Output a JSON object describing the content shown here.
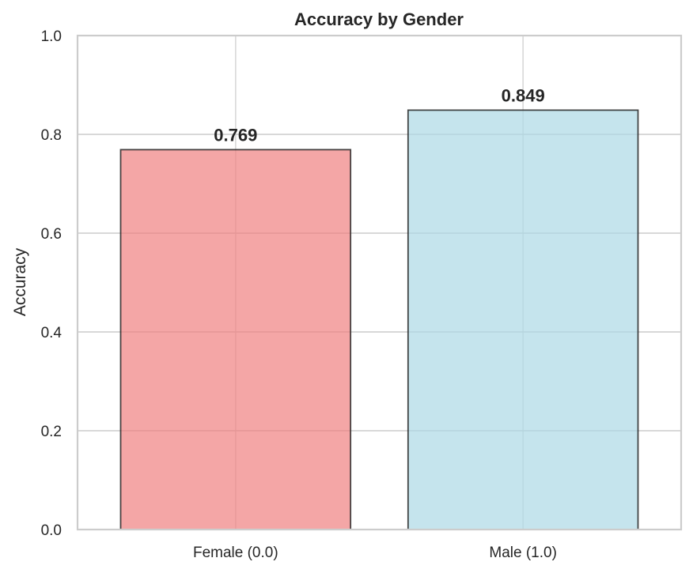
{
  "chart_data": {
    "type": "bar",
    "title": "Accuracy by Gender",
    "xlabel": "",
    "ylabel": "Accuracy",
    "categories": [
      "Female (0.0)",
      "Male (1.0)"
    ],
    "values": [
      0.769,
      0.849
    ],
    "value_labels": [
      "0.769",
      "0.849"
    ],
    "ylim": [
      0,
      1.0
    ],
    "yticks": [
      "0.0",
      "0.2",
      "0.4",
      "0.6",
      "0.8",
      "1.0"
    ],
    "colors": [
      "#f08080",
      "#add8e6"
    ],
    "bar_alpha": 0.7,
    "grid": true,
    "legend": "none"
  }
}
